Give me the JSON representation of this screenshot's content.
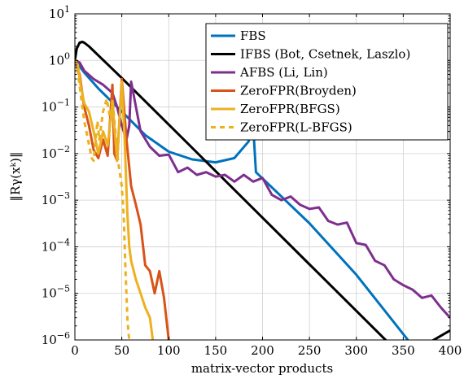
{
  "chart_data": {
    "type": "line",
    "xlabel": "matrix-vector products",
    "ylabel": "‖Rγ(xᵏ)‖",
    "y_scale": "log",
    "xlim": [
      0,
      400
    ],
    "ylim": [
      1e-06,
      10
    ],
    "x_ticks": [
      0,
      50,
      100,
      150,
      200,
      250,
      300,
      350,
      400
    ],
    "y_ticks": [
      {
        "value": 1e-06,
        "base": "10",
        "exp": "−6"
      },
      {
        "value": 1e-05,
        "base": "10",
        "exp": "−5"
      },
      {
        "value": 0.0001,
        "base": "10",
        "exp": "−4"
      },
      {
        "value": 0.001,
        "base": "10",
        "exp": "−3"
      },
      {
        "value": 0.01,
        "base": "10",
        "exp": "−2"
      },
      {
        "value": 0.1,
        "base": "10",
        "exp": "−1"
      },
      {
        "value": 1,
        "base": "10",
        "exp": "0"
      },
      {
        "value": 10,
        "base": "10",
        "exp": "1"
      }
    ],
    "grid": true,
    "legend_position": "top-right",
    "series": [
      {
        "name": "FBS",
        "color": "#0072bd",
        "dash": "solid",
        "x": [
          0,
          10,
          25,
          50,
          75,
          100,
          125,
          150,
          170,
          185,
          190,
          193,
          250,
          300,
          355
        ],
        "y": [
          1.0,
          0.55,
          0.25,
          0.08,
          0.025,
          0.011,
          0.0075,
          0.0065,
          0.008,
          0.018,
          0.04,
          0.004,
          0.00032,
          2.5e-05,
          1e-06
        ]
      },
      {
        "name": "IFBS (Bot, Csetnek, Laszlo)",
        "color": "#000000",
        "dash": "solid",
        "x": [
          0,
          2,
          5,
          8,
          10,
          15,
          50,
          100,
          150,
          200,
          250,
          300,
          350,
          400
        ],
        "y": [
          1.0,
          1.8,
          2.4,
          2.5,
          2.4,
          2.0,
          0.42,
          0.042,
          0.0042,
          0.00042,
          4.2e-05,
          4.2e-06,
          4.2e-07,
          1.6e-06
        ]
      },
      {
        "name": "AFBS (Li, Lin)",
        "color": "#7e2f8e",
        "dash": "solid",
        "x": [
          0,
          5,
          10,
          20,
          30,
          40,
          45,
          50,
          55,
          58,
          60,
          70,
          80,
          90,
          100,
          110,
          120,
          130,
          140,
          150,
          160,
          170,
          180,
          190,
          200,
          210,
          220,
          230,
          240,
          250,
          260,
          270,
          280,
          290,
          300,
          310,
          320,
          330,
          340,
          350,
          360,
          370,
          380,
          390,
          400
        ],
        "y": [
          1.0,
          0.9,
          0.6,
          0.4,
          0.3,
          0.2,
          0.1,
          0.04,
          0.02,
          0.04,
          0.35,
          0.03,
          0.014,
          0.009,
          0.0095,
          0.004,
          0.005,
          0.0035,
          0.004,
          0.0032,
          0.0035,
          0.0025,
          0.0035,
          0.0025,
          0.003,
          0.0013,
          0.001,
          0.0012,
          0.0008,
          0.00065,
          0.0007,
          0.00036,
          0.0003,
          0.00033,
          0.00012,
          0.00011,
          5e-05,
          4e-05,
          2e-05,
          1.5e-05,
          1.2e-05,
          8e-06,
          9e-06,
          5e-06,
          3e-06
        ]
      },
      {
        "name": "ZeroFPR(Broyden)",
        "color": "#d95319",
        "dash": "solid",
        "x": [
          0,
          5,
          10,
          15,
          20,
          25,
          30,
          35,
          40,
          42,
          45,
          50,
          55,
          60,
          65,
          70,
          75,
          80,
          85,
          90,
          95,
          100
        ],
        "y": [
          1.0,
          0.5,
          0.1,
          0.04,
          0.012,
          0.008,
          0.02,
          0.009,
          0.3,
          0.01,
          0.007,
          0.4,
          0.02,
          0.002,
          0.0008,
          0.0003,
          4e-05,
          3e-05,
          1e-05,
          3e-05,
          8e-06,
          1e-06
        ]
      },
      {
        "name": "ZeroFPR(BFGS)",
        "color": "#edb120",
        "dash": "solid",
        "x": [
          0,
          3,
          6,
          10,
          15,
          20,
          25,
          30,
          35,
          40,
          45,
          50,
          53,
          56,
          58,
          60,
          65,
          70,
          75,
          80,
          83
        ],
        "y": [
          1.0,
          0.8,
          0.3,
          0.12,
          0.08,
          0.03,
          0.01,
          0.03,
          0.015,
          0.12,
          0.007,
          0.35,
          0.02,
          0.0005,
          0.0001,
          5e-05,
          2e-05,
          1e-05,
          5e-06,
          3e-06,
          1e-06
        ]
      },
      {
        "name": "ZeroFPR(L-BFGS)",
        "color": "#edb120",
        "dash": "dashed",
        "x": [
          0,
          3,
          6,
          10,
          14,
          18,
          20,
          24,
          26,
          30,
          34,
          38,
          40,
          44,
          46,
          50,
          52,
          54,
          56,
          57,
          58
        ],
        "y": [
          1.0,
          0.6,
          0.2,
          0.05,
          0.02,
          0.008,
          0.007,
          0.05,
          0.02,
          0.08,
          0.15,
          0.05,
          0.15,
          0.02,
          0.007,
          0.002,
          0.0005,
          3e-05,
          3e-06,
          1.5e-06,
          1e-06
        ]
      }
    ]
  }
}
